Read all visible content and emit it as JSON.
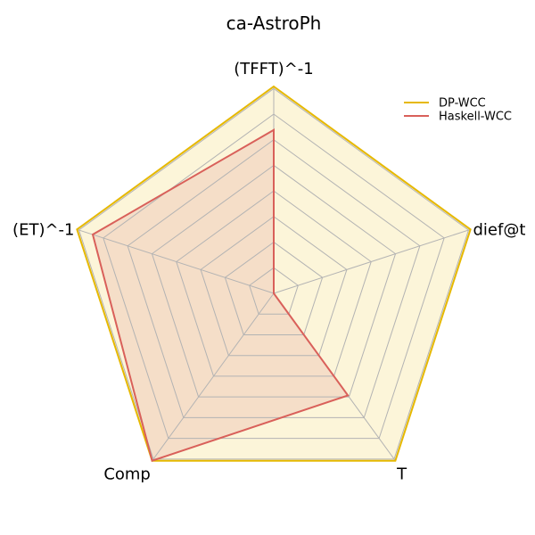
{
  "chart_data": {
    "type": "radar",
    "title": "ca-AstroPh",
    "axes": [
      "(TFFT)^-1",
      "dief@t",
      "T",
      "Comp",
      "(ET)^-1"
    ],
    "rmax": 1.0,
    "grid_levels": 8,
    "legend_position": "top-right",
    "series": [
      {
        "name": "DP-WCC",
        "values": [
          1.0,
          1.0,
          1.0,
          1.0,
          1.0
        ],
        "color": "#e6b800",
        "fill": "#fcf5d9"
      },
      {
        "name": "Haskell-WCC",
        "values": [
          0.79,
          0.0,
          0.61,
          1.0,
          0.92
        ],
        "color": "#d9605a",
        "fill": "#f5dec8"
      }
    ],
    "grid_color": "#b3b3b3"
  }
}
